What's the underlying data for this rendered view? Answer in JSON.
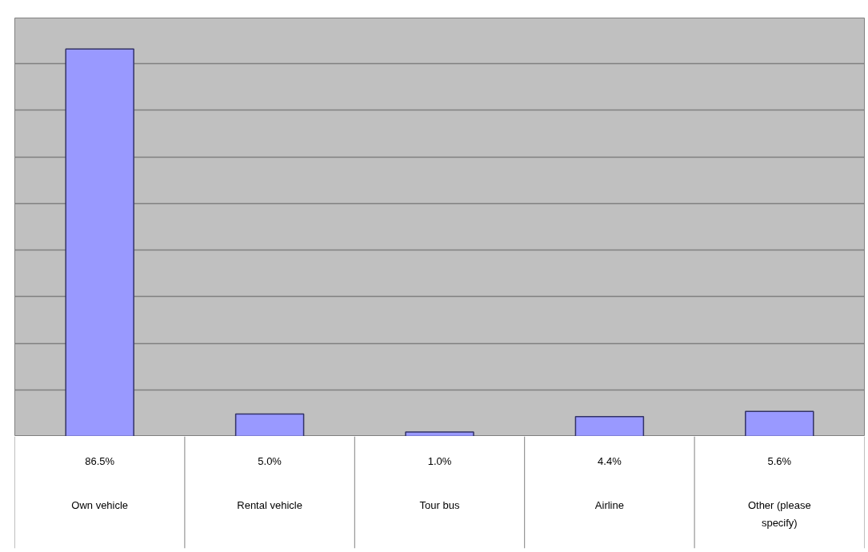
{
  "chart_data": {
    "type": "bar",
    "categories": [
      "Own vehicle",
      "Rental vehicle",
      "Tour bus",
      "Airline",
      "Other (please specify)"
    ],
    "values": [
      86.5,
      5.0,
      1.0,
      4.4,
      5.6
    ],
    "value_labels": [
      "86.5%",
      "5.0%",
      "1.0%",
      "4.4%",
      "5.6%"
    ],
    "color": "#9999ff",
    "ylim": [
      0,
      93.4
    ],
    "yticks": [
      {
        "value": 0,
        "label": null
      },
      {
        "value": 10.4,
        "label": null
      },
      {
        "value": 20.8,
        "label": null
      },
      {
        "value": 31.2,
        "label": null
      },
      {
        "value": 41.6,
        "label": null
      },
      {
        "value": 52,
        "label": null
      },
      {
        "value": 62.4,
        "label": null
      },
      {
        "value": 72.8,
        "label": null
      },
      {
        "value": 83.2,
        "label": null
      }
    ],
    "tick_labels": false,
    "grid": "y"
  }
}
